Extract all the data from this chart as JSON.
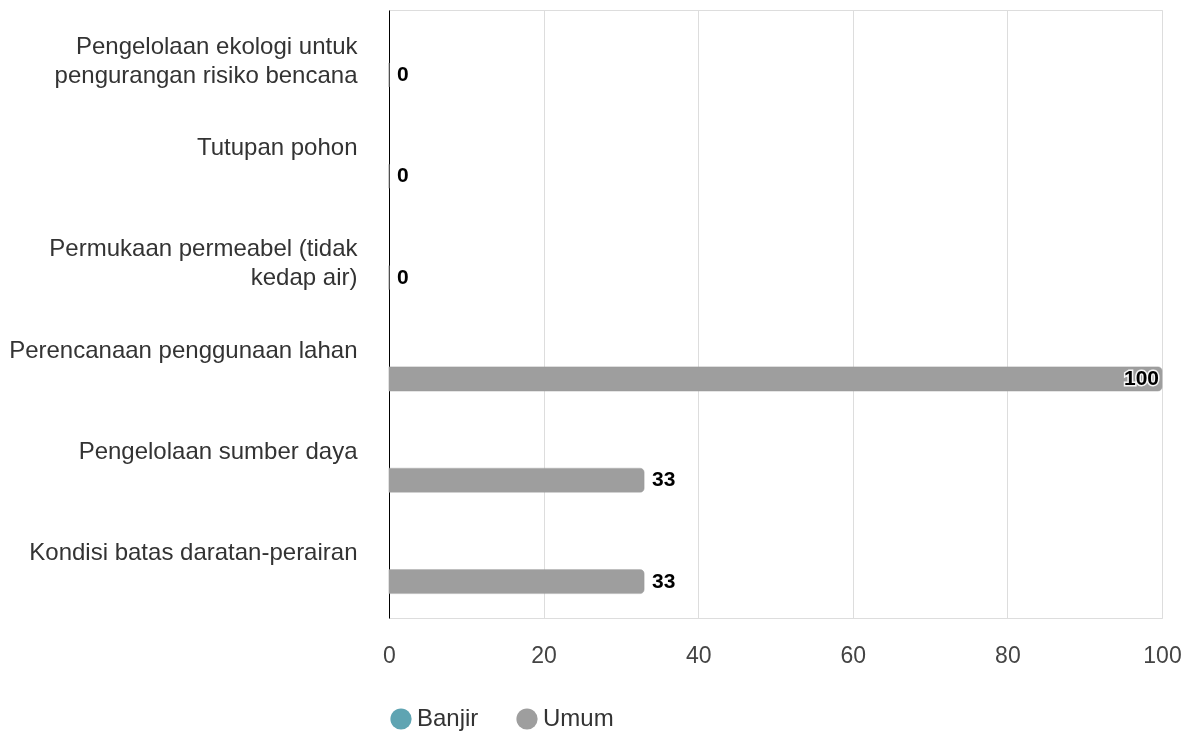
{
  "chart_data": {
    "type": "bar",
    "orientation": "horizontal",
    "categories": [
      "Pengelolaan ekologi untuk\npengurangan risiko bencana",
      "Tutupan pohon",
      "Permukaan permeabel (tidak\nkedap air)",
      "Perencanaan penggunaan lahan",
      "Pengelolaan sumber daya",
      "Kondisi batas daratan-perairan"
    ],
    "series": [
      {
        "name": "Banjir",
        "color": "#5fa4b2",
        "values": [
          null,
          null,
          null,
          null,
          null,
          null
        ]
      },
      {
        "name": "Umum",
        "color": "#9e9e9e",
        "values": [
          0,
          0,
          0,
          100,
          33,
          33
        ]
      }
    ],
    "xlim": [
      0,
      100
    ],
    "xticks": [
      0,
      20,
      40,
      60,
      80,
      100
    ],
    "grid": "x",
    "legend": "bottom",
    "data_labels": true
  }
}
